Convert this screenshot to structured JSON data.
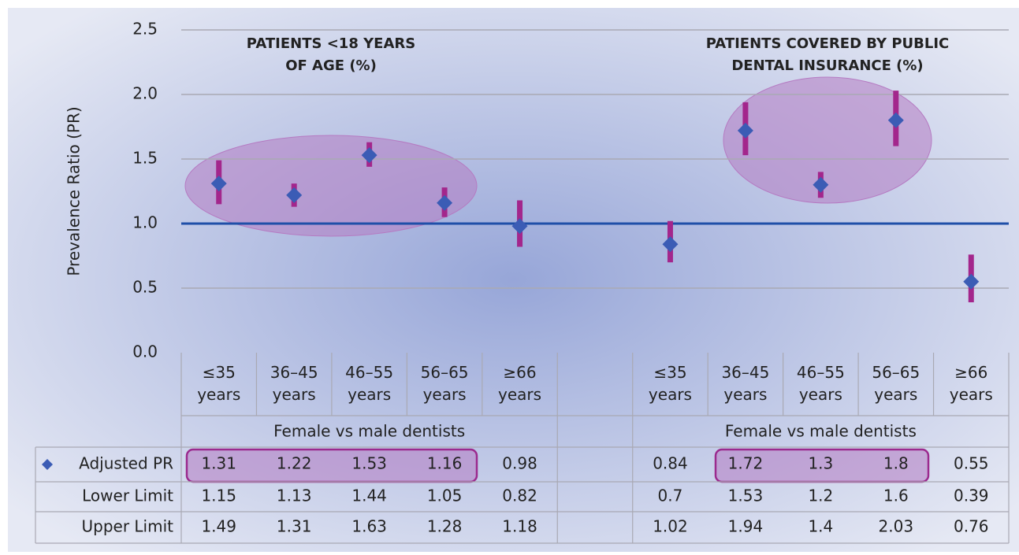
{
  "chart_data": {
    "type": "errorbar",
    "y_label": "Prevalence Ratio (PR)",
    "annotations": [
      "PATIENTS <18 YEARS OF AGE (%)",
      "PATIENTS COVERED BY PUBLIC DENTAL INSURANCE (%)"
    ],
    "categories": [
      "≤35 years",
      "36–45 years",
      "46–55 years",
      "56–65 years",
      "≥66 years",
      null,
      "≤35 years",
      "36–45 years",
      "46–55 years",
      "56–65 years",
      "≥66 years"
    ],
    "groups": [
      "Female vs male dentists",
      "Female vs male dentists"
    ],
    "series": [
      {
        "name": "Adjusted PR",
        "color": "#3b5cb5",
        "values": [
          1.31,
          1.22,
          1.53,
          1.16,
          0.98,
          null,
          0.84,
          1.72,
          1.3,
          1.8,
          0.55
        ]
      },
      {
        "name": "Lower Limit",
        "color": "#a3268c",
        "values": [
          1.15,
          1.13,
          1.44,
          1.05,
          0.82,
          null,
          0.7,
          1.53,
          1.2,
          1.6,
          0.39
        ]
      },
      {
        "name": "Upper Limit",
        "color": "#a3268c",
        "values": [
          1.49,
          1.31,
          1.63,
          1.28,
          1.18,
          null,
          1.02,
          1.94,
          1.4,
          2.03,
          0.76
        ]
      }
    ],
    "reference_line": 1,
    "ylim": [
      0,
      2.5
    ],
    "yticks": [
      {
        "value": 0,
        "label": "0.0"
      },
      0.5,
      {
        "value": 1,
        "label": "1.0"
      },
      1.5,
      {
        "value": 2,
        "label": "2.0"
      },
      2.5
    ],
    "grid": true
  }
}
